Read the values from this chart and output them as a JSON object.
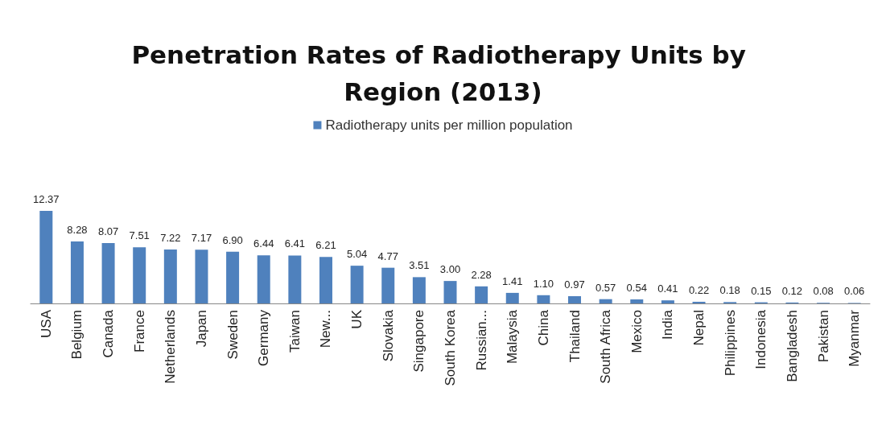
{
  "chart_data": {
    "type": "bar",
    "title": "Penetration Rates of Radiotherapy Units by Region (2013)",
    "categories": [
      "USA",
      "Belgium",
      "Canada",
      "France",
      "Netherlands",
      "Japan",
      "Sweden",
      "Germany",
      "Taiwan",
      "New...",
      "UK",
      "Slovakia",
      "Singapore",
      "South Korea",
      "Russian...",
      "Malaysia",
      "China",
      "Thailand",
      "South Africa",
      "Mexico",
      "India",
      "Nepal",
      "Philippines",
      "Indonesia",
      "Bangladesh",
      "Pakistan",
      "Myanmar"
    ],
    "series": [
      {
        "name": "Radiotherapy units per million population",
        "color": "#4f81bd",
        "values": [
          12.37,
          8.28,
          8.07,
          7.51,
          7.22,
          7.17,
          6.9,
          6.44,
          6.41,
          6.21,
          5.04,
          4.77,
          3.51,
          3.0,
          2.28,
          1.41,
          1.1,
          0.97,
          0.57,
          0.54,
          0.41,
          0.22,
          0.18,
          0.15,
          0.12,
          0.08,
          0.06
        ],
        "value_labels": [
          "12.37",
          "8.28",
          "8.07",
          "7.51",
          "7.22",
          "7.17",
          "6.90",
          "6.44",
          "6.41",
          "6.21",
          "5.04",
          "4.77",
          "3.51",
          "3.00",
          "2.28",
          "1.41",
          "1.10",
          "0.97",
          "0.57",
          "0.54",
          "0.41",
          "0.22",
          "0.18",
          "0.15",
          "0.12",
          "0.08",
          "0.06"
        ]
      }
    ],
    "legend": "top"
  }
}
